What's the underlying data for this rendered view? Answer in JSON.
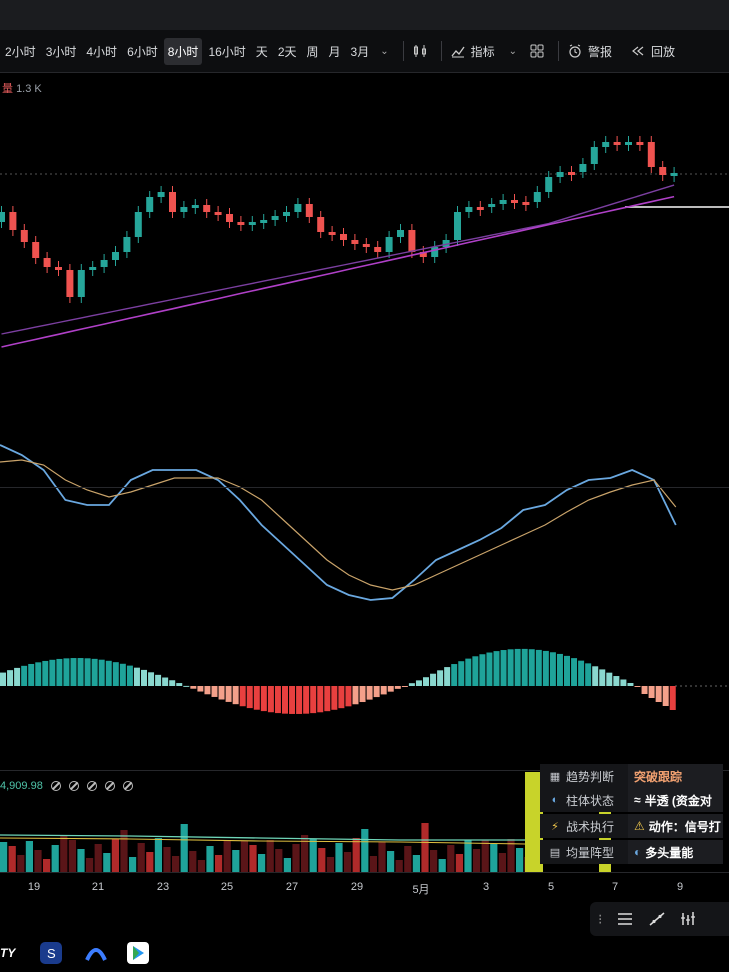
{
  "toolbar": {
    "timeframes": [
      "2小时",
      "3小时",
      "4小时",
      "6小时",
      "8小时",
      "16小时",
      "天",
      "2天",
      "周",
      "月",
      "3月"
    ],
    "active_timeframe": "8小时",
    "indicators_label": "指标",
    "alerts_label": "警报",
    "replay_label": "回放"
  },
  "volume_pane": {
    "label": "量",
    "value": "1.3 K"
  },
  "indicator_pane": {
    "value": "4,909.98"
  },
  "panel": {
    "rows": [
      {
        "label": "趋势判断",
        "icon": "wave-icon",
        "value": "突破跟踪"
      },
      {
        "label": "柱体状态",
        "icon": "wave-icon",
        "value": "半透 (资金对"
      },
      {
        "label": "战术执行",
        "icon": "bolt-icon",
        "value": "动作：信号打"
      },
      {
        "label": "均量阵型",
        "icon": "doc-icon",
        "value": "多头量能"
      }
    ]
  },
  "xaxis": {
    "labels": [
      "19",
      "21",
      "23",
      "25",
      "27",
      "29",
      "5月",
      "3",
      "5",
      "7",
      "9"
    ]
  },
  "dock": {
    "text": "TY"
  },
  "colors": {
    "up": "#26a69a",
    "down": "#ef5350",
    "ma1": "#7b3fa0",
    "ma2": "#b040c8",
    "macd": "#6aa8e0",
    "signal": "#c9a36a"
  }
}
